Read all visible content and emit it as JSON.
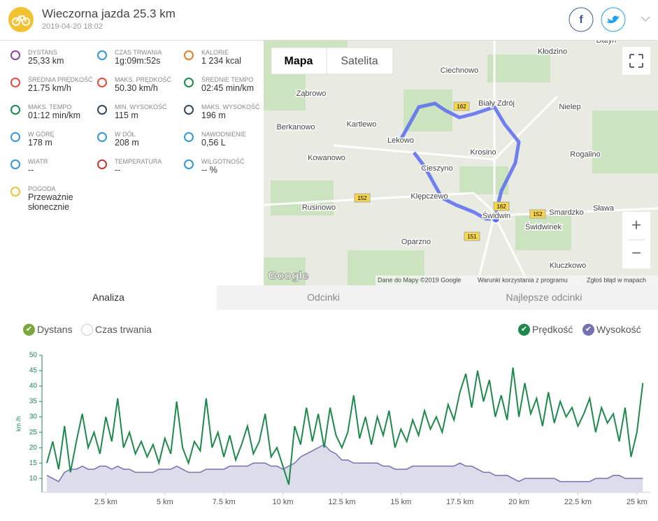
{
  "header": {
    "title": "Wieczorna jazda 25.3 km",
    "date": "2019-04-20 18:02"
  },
  "stats": [
    {
      "label": "DYSTANS",
      "value": "25,33 km"
    },
    {
      "label": "CZAS TRWANIA",
      "value": "1g:09m:52s"
    },
    {
      "label": "KALORIE",
      "value": "1 234 kcal"
    },
    {
      "label": "ŚREDNIA PRĘDKOŚĆ",
      "value": "21.75 km/h"
    },
    {
      "label": "MAKS. PRĘDKOŚĆ",
      "value": "50.30 km/h"
    },
    {
      "label": "ŚREDNIE TEMPO",
      "value": "02:45 min/km"
    },
    {
      "label": "MAKS. TEMPO",
      "value": "01:12 min/km"
    },
    {
      "label": "MIN. WYSOKOŚĆ",
      "value": "115 m"
    },
    {
      "label": "MAKS. WYSOKOŚĆ",
      "value": "196 m"
    },
    {
      "label": "W GÓRĘ",
      "value": "178 m"
    },
    {
      "label": "W DÓŁ",
      "value": "208 m"
    },
    {
      "label": "NAWODNIENIE",
      "value": "0,56 L"
    },
    {
      "label": "WIATR",
      "value": "--"
    },
    {
      "label": "TEMPERATURA",
      "value": "--"
    },
    {
      "label": "WILGOTNOŚĆ",
      "value": "-- %"
    },
    {
      "label": "POGODA",
      "value": "Przeważnie słonecznie"
    }
  ],
  "map": {
    "buttons": [
      "Mapa",
      "Satelita"
    ],
    "zoom": [
      "+",
      "−"
    ],
    "places": [
      "Kłodzino",
      "Ciechnowo",
      "Ząbrowo",
      "Biały Zdrój",
      "Nielep",
      "Berkanowo",
      "Kartlewo",
      "Lekowo",
      "Krosino",
      "Rogalino",
      "Kowanowo",
      "Cieszyno",
      "Klępczewo",
      "Rusinowo",
      "Sława",
      "Smardzko",
      "Świdwin",
      "Świdwinek",
      "Oparzno",
      "Kluczkowo",
      "Datyń"
    ],
    "roads": [
      "162",
      "162",
      "152",
      "152",
      "151"
    ],
    "logo": "Google",
    "footer": [
      "Dane do Mapy ©2019 Google",
      "Warunki korzystania z programu",
      "Zgłoś błąd w mapach"
    ]
  },
  "tabs": [
    "Analiza",
    "Odcinki",
    "Najlepsze odcinki"
  ],
  "toggles": [
    {
      "label": "Dystans",
      "checked": true
    },
    {
      "label": "Czas trwania",
      "checked": false
    },
    {
      "label": "Prędkość",
      "checked": true
    },
    {
      "label": "Wysokość",
      "checked": true
    }
  ],
  "chart_data": {
    "type": "line",
    "y_label": "km /h",
    "x": [
      0,
      0.25,
      0.5,
      0.75,
      1,
      1.25,
      1.5,
      1.75,
      2,
      2.25,
      2.5,
      2.75,
      3,
      3.25,
      3.5,
      3.75,
      4,
      4.25,
      4.5,
      4.75,
      5,
      5.25,
      5.5,
      5.75,
      6,
      6.25,
      6.5,
      6.75,
      7,
      7.25,
      7.5,
      7.75,
      8,
      8.25,
      8.5,
      8.75,
      9,
      9.25,
      9.5,
      9.75,
      10,
      10.25,
      10.5,
      10.75,
      11,
      11.25,
      11.5,
      11.75,
      12,
      12.25,
      12.5,
      12.75,
      13,
      13.25,
      13.5,
      13.75,
      14,
      14.25,
      14.5,
      14.75,
      15,
      15.25,
      15.5,
      15.75,
      16,
      16.25,
      16.5,
      16.75,
      17,
      17.25,
      17.5,
      17.75,
      18,
      18.25,
      18.5,
      18.75,
      19,
      19.25,
      19.5,
      19.75,
      20,
      20.25,
      20.5,
      20.75,
      21,
      21.25,
      21.5,
      21.75,
      22,
      22.25,
      22.5,
      22.75,
      23,
      23.25,
      23.5,
      23.75,
      24,
      24.25,
      24.5,
      24.75,
      25,
      25.25
    ],
    "series": [
      {
        "name": "Prędkość",
        "color": "#1d8a4c",
        "values": [
          15,
          22,
          13,
          27,
          12,
          22,
          31,
          20,
          25,
          18,
          30,
          22,
          36,
          20,
          25,
          18,
          22,
          17,
          21,
          15,
          23,
          18,
          35,
          20,
          15,
          22,
          19,
          36,
          20,
          25,
          17,
          24,
          16,
          21,
          27,
          18,
          22,
          31,
          17,
          20,
          14,
          8,
          27,
          21,
          33,
          22,
          31,
          20,
          33,
          24,
          20,
          25,
          37,
          23,
          30,
          21,
          30,
          24,
          32,
          20,
          26,
          22,
          29,
          24,
          32,
          26,
          30,
          25,
          34,
          29,
          38,
          44,
          33,
          45,
          35,
          42,
          30,
          37,
          29,
          46,
          30,
          41,
          31,
          36,
          27,
          38,
          28,
          35,
          30,
          33,
          27,
          31,
          36,
          25,
          33,
          28,
          31,
          22,
          33,
          17,
          25,
          41
        ]
      },
      {
        "name": "Wysokość",
        "color": "#7373b3",
        "fill": "#dcdcea",
        "values": [
          11,
          10,
          9,
          12,
          13,
          13,
          14,
          13,
          13,
          14,
          14,
          13,
          14,
          13,
          13,
          12,
          12,
          12,
          12,
          13,
          13,
          13,
          14,
          13,
          12,
          12,
          12,
          13,
          13,
          13,
          13,
          14,
          14,
          14,
          14,
          15,
          15,
          15,
          14,
          14,
          13,
          14,
          15,
          17,
          18,
          19,
          20,
          21,
          19,
          18,
          16,
          16,
          15,
          15,
          15,
          15,
          15,
          14,
          14,
          13,
          13,
          13,
          14,
          14,
          14,
          14,
          14,
          14,
          14,
          14,
          15,
          14,
          14,
          13,
          12,
          12,
          11,
          11,
          11,
          10,
          9,
          10,
          10,
          10,
          10,
          10,
          10,
          9,
          9,
          9,
          9,
          9,
          9,
          10,
          10,
          10,
          11,
          11,
          10,
          10,
          10,
          10
        ]
      }
    ],
    "xlim": [
      0,
      25.33
    ],
    "ylim": [
      5.5,
      50
    ],
    "xticks": [
      {
        "value": 2.5,
        "label": "2.5 km"
      },
      {
        "value": 5,
        "label": "5 km"
      },
      {
        "value": 7.5,
        "label": "7.5 km"
      },
      {
        "value": 10,
        "label": "10 km"
      },
      {
        "value": 12.5,
        "label": "12.5 km"
      },
      {
        "value": 15,
        "label": "15 km"
      },
      {
        "value": 17.5,
        "label": "17.5 km"
      },
      {
        "value": 20,
        "label": "20 km"
      },
      {
        "value": 22.5,
        "label": "22.5 km"
      },
      {
        "value": 25,
        "label": "25 km"
      }
    ],
    "yticks": [
      10,
      15,
      20,
      25,
      30,
      35,
      40,
      45,
      50
    ],
    "grid": false
  }
}
